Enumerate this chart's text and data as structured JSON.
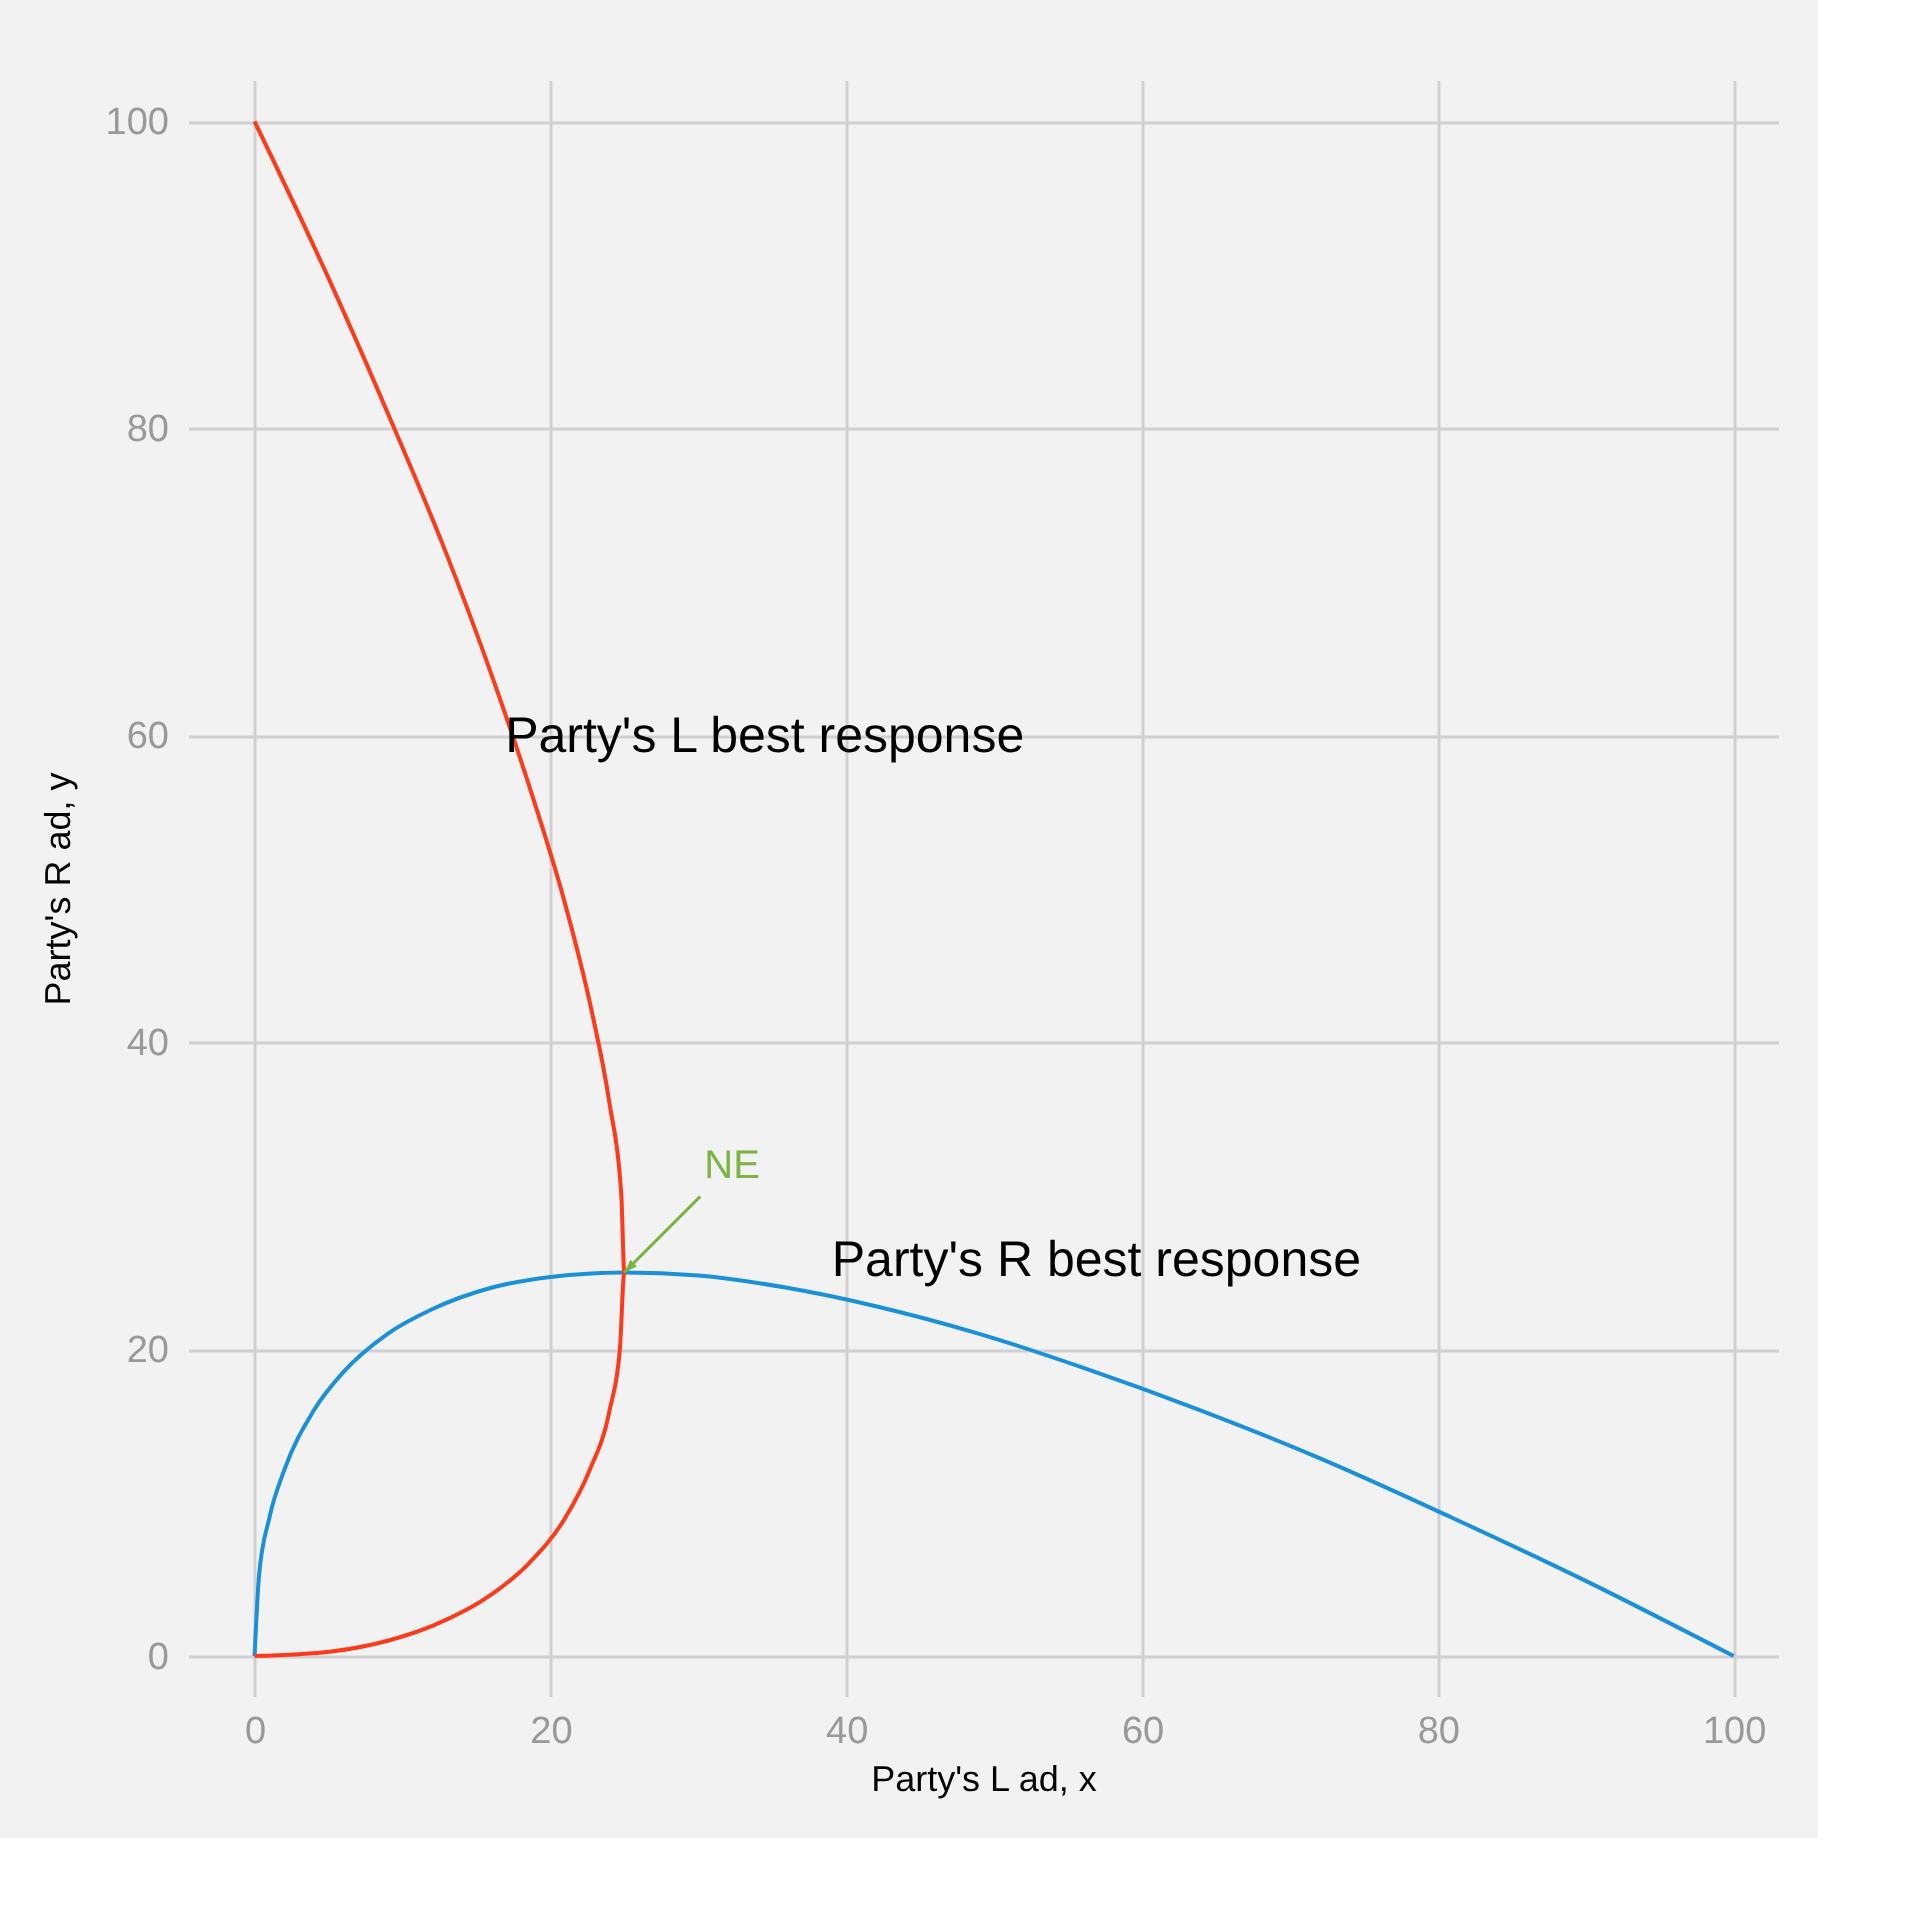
{
  "chart_data": {
    "type": "line",
    "xlabel": "Party's L ad, x",
    "ylabel": "Party's R ad, y",
    "xlim": [
      -4.5,
      103
    ],
    "ylim": [
      -2.6,
      102.7
    ],
    "xticks": [
      0,
      20,
      40,
      60,
      80,
      100
    ],
    "yticks": [
      0,
      20,
      40,
      60,
      80,
      100
    ],
    "grid": true,
    "series": [
      {
        "name": "Party's R best response",
        "color": "#1a90d8",
        "x": [
          0,
          0.3,
          1,
          2,
          4,
          6,
          9,
          12,
          16,
          20,
          25,
          30,
          36,
          42,
          49,
          56,
          64,
          72,
          81,
          90,
          100
        ],
        "values": [
          0,
          5.2,
          9,
          12.1,
          16,
          18.5,
          21,
          22.6,
          24,
          24.7,
          25,
          24.8,
          24,
          22.8,
          21,
          18.8,
          16,
          12.9,
          9,
          4.9,
          0
        ]
      },
      {
        "name": "Party's L best response",
        "color": "#ff3a1a",
        "x": [
          0,
          5.2,
          9,
          12.1,
          16,
          18.5,
          21,
          22.6,
          24,
          24.7,
          25,
          24.8,
          24,
          22.8,
          21,
          18.8,
          16,
          12.9,
          9,
          4.9,
          0
        ],
        "values": [
          0,
          0.3,
          1,
          2,
          4,
          6,
          9,
          12,
          16,
          20,
          25,
          30,
          36,
          42,
          49,
          56,
          64,
          72,
          81,
          90,
          100
        ]
      }
    ],
    "annotations": [
      {
        "text": "NE",
        "x": 25,
        "y": 25
      }
    ]
  }
}
